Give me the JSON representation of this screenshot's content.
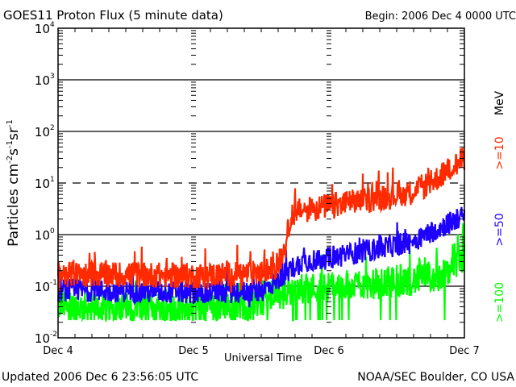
{
  "chart_data": {
    "type": "line",
    "title": "GOES11 Proton Flux (5 minute data)",
    "begin_label": "Begin: 2006 Dec 4 0000 UTC",
    "xlabel": "Universal Time",
    "ylabel": "Particles cm",
    "ylabel_parts": [
      "Particles cm",
      "-2",
      "s",
      "-1",
      "sr",
      "-1"
    ],
    "y_scale": "log",
    "ylim": [
      0.01,
      10000
    ],
    "y_ticks": [
      {
        "base": "10",
        "exp": "4",
        "value": 10000
      },
      {
        "base": "10",
        "exp": "3",
        "value": 1000
      },
      {
        "base": "10",
        "exp": "2",
        "value": 100
      },
      {
        "base": "10",
        "exp": "1",
        "value": 10
      },
      {
        "base": "10",
        "exp": "0",
        "value": 1
      },
      {
        "base": "10",
        "exp": "-1",
        "value": 0.1
      },
      {
        "base": "10",
        "exp": "-2",
        "value": 0.01
      }
    ],
    "x_unit": "days since 2006 Dec 4 0000 UTC",
    "xlim": [
      0,
      3
    ],
    "x_ticks": [
      {
        "label": "Dec 4",
        "value": 0
      },
      {
        "label": "Dec 5",
        "value": 1
      },
      {
        "label": "Dec 6",
        "value": 2
      },
      {
        "label": "Dec 7",
        "value": 3
      }
    ],
    "dashed_reference": 10,
    "solid_reference": [
      1000,
      100,
      1,
      0.1
    ],
    "legend_unit": "MeV",
    "series": [
      {
        "name": ">=10",
        "color": "#ff2a00",
        "trend": [
          [
            0,
            0.17
          ],
          [
            0.5,
            0.17
          ],
          [
            1.0,
            0.16
          ],
          [
            1.5,
            0.18
          ],
          [
            1.62,
            0.25
          ],
          [
            1.68,
            0.6
          ],
          [
            1.72,
            2.5
          ],
          [
            1.8,
            3.0
          ],
          [
            2.0,
            3.6
          ],
          [
            2.3,
            4.8
          ],
          [
            2.6,
            6.5
          ],
          [
            2.75,
            10
          ],
          [
            3.0,
            30
          ]
        ],
        "noise_decades": 0.25
      },
      {
        "name": ">=50",
        "color": "#1e00ff",
        "trend": [
          [
            0,
            0.085
          ],
          [
            0.5,
            0.08
          ],
          [
            1.0,
            0.075
          ],
          [
            1.5,
            0.08
          ],
          [
            1.6,
            0.12
          ],
          [
            1.7,
            0.2
          ],
          [
            1.8,
            0.3
          ],
          [
            2.0,
            0.35
          ],
          [
            2.3,
            0.5
          ],
          [
            2.6,
            0.7
          ],
          [
            2.8,
            1.3
          ],
          [
            3.0,
            2.3
          ]
        ],
        "noise_decades": 0.22
      },
      {
        "name": ">=100",
        "color": "#00ff00",
        "trend": [
          [
            0,
            0.04
          ],
          [
            0.5,
            0.04
          ],
          [
            1.0,
            0.04
          ],
          [
            1.5,
            0.045
          ],
          [
            1.65,
            0.07
          ],
          [
            1.8,
            0.09
          ],
          [
            2.0,
            0.1
          ],
          [
            2.5,
            0.12
          ],
          [
            2.8,
            0.15
          ],
          [
            2.9,
            0.2
          ],
          [
            3.0,
            0.4
          ]
        ],
        "noise_decades": 0.3
      }
    ]
  },
  "footer": {
    "updated": "Updated 2006 Dec  6 23:56:05 UTC",
    "credit": "NOAA/SEC Boulder, CO USA"
  }
}
